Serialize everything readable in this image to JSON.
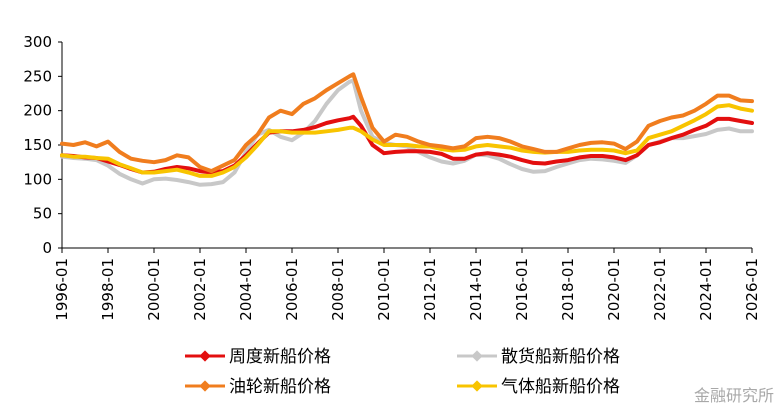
{
  "chart_data": {
    "type": "line",
    "title": "",
    "xlabel": "",
    "ylabel": "",
    "ylim": [
      0,
      300
    ],
    "yticks": [
      0,
      50,
      100,
      150,
      200,
      250,
      300
    ],
    "xlim": [
      "1996-01",
      "2026-01"
    ],
    "xticks": [
      "1996-01",
      "1998-01",
      "2000-01",
      "2002-01",
      "2004-01",
      "2006-01",
      "2008-01",
      "2010-01",
      "2012-01",
      "2014-01",
      "2016-01",
      "2018-01",
      "2020-01",
      "2022-01",
      "2024-01",
      "2026-01"
    ],
    "grid": false,
    "legend_position": "bottom",
    "series": [
      {
        "name": "周度新船价格",
        "color": "#e30f0f",
        "points": [
          [
            "1996-01",
            135
          ],
          [
            "1996-07",
            134
          ],
          [
            "1997-01",
            132
          ],
          [
            "1997-07",
            131
          ],
          [
            "1998-01",
            126
          ],
          [
            "1998-07",
            121
          ],
          [
            "1999-01",
            115
          ],
          [
            "1999-07",
            110
          ],
          [
            "2000-01",
            111
          ],
          [
            "2000-07",
            115
          ],
          [
            "2001-01",
            118
          ],
          [
            "2001-07",
            116
          ],
          [
            "2002-01",
            112
          ],
          [
            "2002-07",
            110
          ],
          [
            "2003-01",
            112
          ],
          [
            "2003-07",
            120
          ],
          [
            "2004-01",
            135
          ],
          [
            "2004-07",
            152
          ],
          [
            "2005-01",
            168
          ],
          [
            "2005-07",
            170
          ],
          [
            "2006-01",
            170
          ],
          [
            "2006-07",
            172
          ],
          [
            "2007-01",
            176
          ],
          [
            "2007-07",
            182
          ],
          [
            "2008-01",
            186
          ],
          [
            "2008-07",
            189
          ],
          [
            "2008-09",
            191
          ],
          [
            "2009-01",
            178
          ],
          [
            "2009-07",
            150
          ],
          [
            "2010-01",
            138
          ],
          [
            "2010-07",
            140
          ],
          [
            "2011-01",
            141
          ],
          [
            "2011-07",
            141
          ],
          [
            "2012-01",
            140
          ],
          [
            "2012-07",
            137
          ],
          [
            "2013-01",
            130
          ],
          [
            "2013-07",
            130
          ],
          [
            "2014-01",
            136
          ],
          [
            "2014-07",
            138
          ],
          [
            "2015-01",
            136
          ],
          [
            "2015-07",
            133
          ],
          [
            "2016-01",
            128
          ],
          [
            "2016-07",
            124
          ],
          [
            "2017-01",
            123
          ],
          [
            "2017-07",
            126
          ],
          [
            "2018-01",
            128
          ],
          [
            "2018-07",
            132
          ],
          [
            "2019-01",
            134
          ],
          [
            "2019-07",
            134
          ],
          [
            "2020-01",
            132
          ],
          [
            "2020-07",
            128
          ],
          [
            "2021-01",
            135
          ],
          [
            "2021-07",
            150
          ],
          [
            "2022-01",
            154
          ],
          [
            "2022-07",
            160
          ],
          [
            "2023-01",
            165
          ],
          [
            "2023-07",
            172
          ],
          [
            "2024-01",
            178
          ],
          [
            "2024-07",
            188
          ],
          [
            "2025-01",
            188
          ],
          [
            "2025-07",
            185
          ],
          [
            "2026-01",
            182
          ]
        ]
      },
      {
        "name": "散货船新船价格",
        "color": "#c8c8c8",
        "points": [
          [
            "1996-01",
            133
          ],
          [
            "1996-07",
            131
          ],
          [
            "1997-01",
            130
          ],
          [
            "1997-07",
            128
          ],
          [
            "1998-01",
            120
          ],
          [
            "1998-07",
            108
          ],
          [
            "1999-01",
            100
          ],
          [
            "1999-07",
            94
          ],
          [
            "2000-01",
            100
          ],
          [
            "2000-07",
            101
          ],
          [
            "2001-01",
            99
          ],
          [
            "2001-07",
            96
          ],
          [
            "2002-01",
            92
          ],
          [
            "2002-07",
            93
          ],
          [
            "2003-01",
            96
          ],
          [
            "2003-07",
            110
          ],
          [
            "2004-01",
            140
          ],
          [
            "2004-07",
            165
          ],
          [
            "2005-01",
            172
          ],
          [
            "2005-07",
            162
          ],
          [
            "2006-01",
            157
          ],
          [
            "2006-07",
            168
          ],
          [
            "2007-01",
            185
          ],
          [
            "2007-07",
            210
          ],
          [
            "2008-01",
            230
          ],
          [
            "2008-07",
            242
          ],
          [
            "2008-09",
            244
          ],
          [
            "2009-01",
            200
          ],
          [
            "2009-07",
            162
          ],
          [
            "2010-01",
            153
          ],
          [
            "2010-07",
            150
          ],
          [
            "2011-01",
            148
          ],
          [
            "2011-07",
            140
          ],
          [
            "2012-01",
            132
          ],
          [
            "2012-07",
            126
          ],
          [
            "2013-01",
            123
          ],
          [
            "2013-07",
            127
          ],
          [
            "2014-01",
            136
          ],
          [
            "2014-07",
            135
          ],
          [
            "2015-01",
            130
          ],
          [
            "2015-07",
            122
          ],
          [
            "2016-01",
            115
          ],
          [
            "2016-07",
            111
          ],
          [
            "2017-01",
            112
          ],
          [
            "2017-07",
            118
          ],
          [
            "2018-01",
            123
          ],
          [
            "2018-07",
            128
          ],
          [
            "2019-01",
            130
          ],
          [
            "2019-07",
            129
          ],
          [
            "2020-01",
            127
          ],
          [
            "2020-07",
            124
          ],
          [
            "2021-01",
            135
          ],
          [
            "2021-07",
            150
          ],
          [
            "2022-01",
            155
          ],
          [
            "2022-07",
            160
          ],
          [
            "2023-01",
            160
          ],
          [
            "2023-07",
            163
          ],
          [
            "2024-01",
            166
          ],
          [
            "2024-07",
            172
          ],
          [
            "2025-01",
            174
          ],
          [
            "2025-07",
            170
          ],
          [
            "2026-01",
            170
          ]
        ]
      },
      {
        "name": "油轮新船价格",
        "color": "#f07d1e",
        "points": [
          [
            "1996-01",
            152
          ],
          [
            "1996-07",
            150
          ],
          [
            "1997-01",
            154
          ],
          [
            "1997-07",
            148
          ],
          [
            "1998-01",
            155
          ],
          [
            "1998-07",
            140
          ],
          [
            "1999-01",
            130
          ],
          [
            "1999-07",
            127
          ],
          [
            "2000-01",
            125
          ],
          [
            "2000-07",
            128
          ],
          [
            "2001-01",
            135
          ],
          [
            "2001-07",
            132
          ],
          [
            "2002-01",
            118
          ],
          [
            "2002-07",
            112
          ],
          [
            "2003-01",
            120
          ],
          [
            "2003-07",
            128
          ],
          [
            "2004-01",
            150
          ],
          [
            "2004-07",
            165
          ],
          [
            "2005-01",
            190
          ],
          [
            "2005-07",
            200
          ],
          [
            "2006-01",
            195
          ],
          [
            "2006-07",
            210
          ],
          [
            "2007-01",
            218
          ],
          [
            "2007-07",
            230
          ],
          [
            "2008-01",
            240
          ],
          [
            "2008-07",
            250
          ],
          [
            "2008-09",
            253
          ],
          [
            "2009-01",
            220
          ],
          [
            "2009-07",
            175
          ],
          [
            "2010-01",
            155
          ],
          [
            "2010-07",
            165
          ],
          [
            "2011-01",
            162
          ],
          [
            "2011-07",
            155
          ],
          [
            "2012-01",
            150
          ],
          [
            "2012-07",
            148
          ],
          [
            "2013-01",
            145
          ],
          [
            "2013-07",
            148
          ],
          [
            "2014-01",
            160
          ],
          [
            "2014-07",
            162
          ],
          [
            "2015-01",
            160
          ],
          [
            "2015-07",
            155
          ],
          [
            "2016-01",
            148
          ],
          [
            "2016-07",
            144
          ],
          [
            "2017-01",
            140
          ],
          [
            "2017-07",
            140
          ],
          [
            "2018-01",
            145
          ],
          [
            "2018-07",
            150
          ],
          [
            "2019-01",
            153
          ],
          [
            "2019-07",
            154
          ],
          [
            "2020-01",
            152
          ],
          [
            "2020-07",
            144
          ],
          [
            "2021-01",
            155
          ],
          [
            "2021-07",
            178
          ],
          [
            "2022-01",
            185
          ],
          [
            "2022-07",
            190
          ],
          [
            "2023-01",
            193
          ],
          [
            "2023-07",
            200
          ],
          [
            "2024-01",
            210
          ],
          [
            "2024-07",
            222
          ],
          [
            "2025-01",
            222
          ],
          [
            "2025-07",
            215
          ],
          [
            "2026-01",
            214
          ]
        ]
      },
      {
        "name": "气体船新船价格",
        "color": "#f8c400",
        "points": [
          [
            "1996-01",
            135
          ],
          [
            "1996-07",
            133
          ],
          [
            "1997-01",
            133
          ],
          [
            "1997-07",
            131
          ],
          [
            "1998-01",
            130
          ],
          [
            "1998-07",
            122
          ],
          [
            "1999-01",
            116
          ],
          [
            "1999-07",
            110
          ],
          [
            "2000-01",
            110
          ],
          [
            "2000-07",
            112
          ],
          [
            "2001-01",
            114
          ],
          [
            "2001-07",
            110
          ],
          [
            "2002-01",
            105
          ],
          [
            "2002-07",
            105
          ],
          [
            "2003-01",
            110
          ],
          [
            "2003-07",
            118
          ],
          [
            "2004-01",
            132
          ],
          [
            "2004-07",
            150
          ],
          [
            "2005-01",
            170
          ],
          [
            "2005-07",
            170
          ],
          [
            "2006-01",
            168
          ],
          [
            "2006-07",
            168
          ],
          [
            "2007-01",
            168
          ],
          [
            "2007-07",
            170
          ],
          [
            "2008-01",
            172
          ],
          [
            "2008-07",
            175
          ],
          [
            "2008-09",
            175
          ],
          [
            "2009-01",
            170
          ],
          [
            "2009-07",
            158
          ],
          [
            "2010-01",
            150
          ],
          [
            "2010-07",
            150
          ],
          [
            "2011-01",
            150
          ],
          [
            "2011-07",
            148
          ],
          [
            "2012-01",
            148
          ],
          [
            "2012-07",
            144
          ],
          [
            "2013-01",
            142
          ],
          [
            "2013-07",
            143
          ],
          [
            "2014-01",
            148
          ],
          [
            "2014-07",
            150
          ],
          [
            "2015-01",
            148
          ],
          [
            "2015-07",
            146
          ],
          [
            "2016-01",
            142
          ],
          [
            "2016-07",
            140
          ],
          [
            "2017-01",
            139
          ],
          [
            "2017-07",
            140
          ],
          [
            "2018-01",
            140
          ],
          [
            "2018-07",
            142
          ],
          [
            "2019-01",
            143
          ],
          [
            "2019-07",
            143
          ],
          [
            "2020-01",
            142
          ],
          [
            "2020-07",
            138
          ],
          [
            "2021-01",
            142
          ],
          [
            "2021-07",
            160
          ],
          [
            "2022-01",
            165
          ],
          [
            "2022-07",
            170
          ],
          [
            "2023-01",
            178
          ],
          [
            "2023-07",
            186
          ],
          [
            "2024-01",
            195
          ],
          [
            "2024-07",
            206
          ],
          [
            "2025-01",
            208
          ],
          [
            "2025-07",
            203
          ],
          [
            "2026-01",
            200
          ]
        ]
      }
    ]
  },
  "watermark": "金融研究所"
}
